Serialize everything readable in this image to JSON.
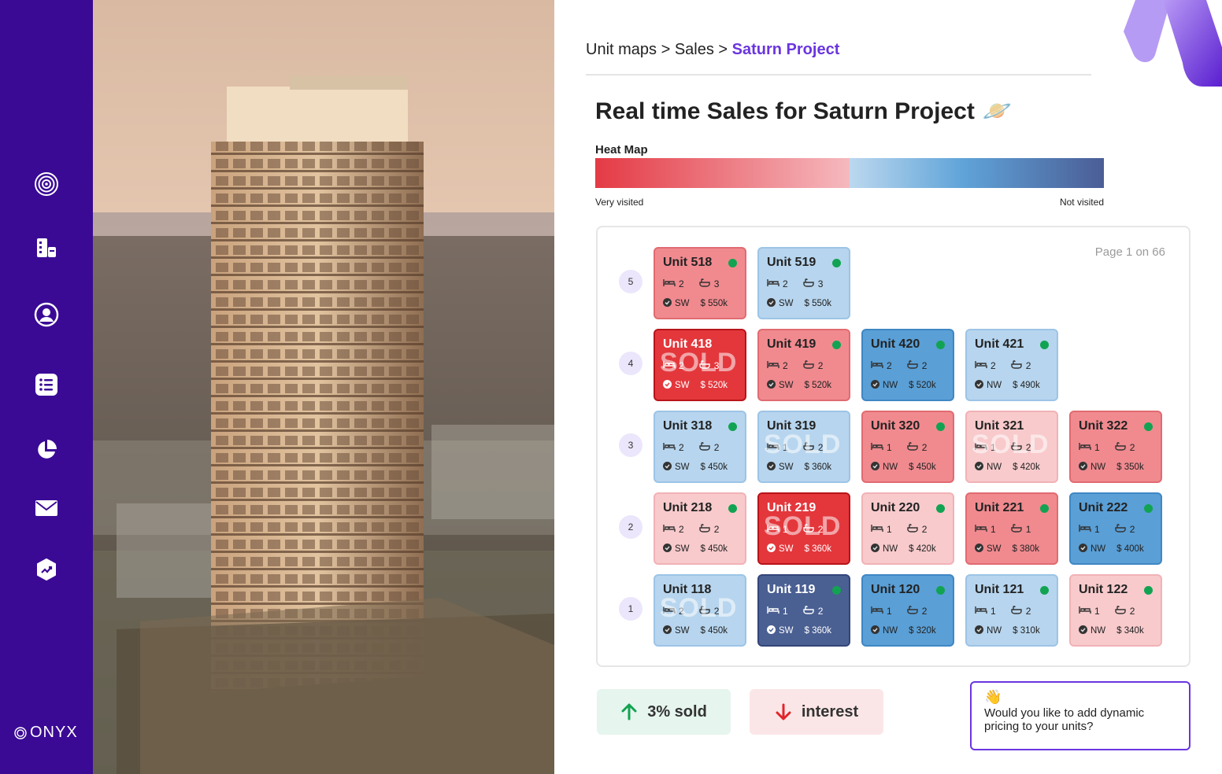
{
  "sidebar": {
    "items": [
      {
        "icon": "target-icon"
      },
      {
        "icon": "building-icon"
      },
      {
        "icon": "user-icon"
      },
      {
        "icon": "list-icon"
      },
      {
        "icon": "pie-chart-icon"
      },
      {
        "icon": "mail-icon"
      },
      {
        "icon": "trend-icon"
      }
    ],
    "logo": "ONYX"
  },
  "breadcrumb": {
    "part1": "Unit maps",
    "sep1": " > ",
    "part2": "Sales",
    "sep2": " > ",
    "current": "Saturn Project"
  },
  "page": {
    "title": "Real time Sales for Saturn Project",
    "title_emoji": "🪐"
  },
  "heatmap": {
    "label": "Heat Map",
    "left_label": "Very visited",
    "right_label": "Not visited"
  },
  "grid": {
    "page_info": "Page 1 on 66",
    "sold_label": "SOLD",
    "floors": [
      "5",
      "4",
      "3",
      "2",
      "1"
    ],
    "units": [
      {
        "name": "Unit 518",
        "beds": "2",
        "baths": "3",
        "dir": "SW",
        "price": "$ 550k",
        "color": "salmon",
        "dot": true,
        "sold": false
      },
      {
        "name": "Unit 519",
        "beds": "2",
        "baths": "3",
        "dir": "SW",
        "price": "$ 550k",
        "color": "lblue",
        "dot": true,
        "sold": false
      },
      {
        "name": "Unit 418",
        "beds": "2",
        "baths": "3",
        "dir": "SW",
        "price": "$ 520k",
        "color": "red",
        "dot": false,
        "sold": true
      },
      {
        "name": "Unit 419",
        "beds": "2",
        "baths": "2",
        "dir": "SW",
        "price": "$ 520k",
        "color": "salmon",
        "dot": true,
        "sold": false
      },
      {
        "name": "Unit 420",
        "beds": "2",
        "baths": "2",
        "dir": "NW",
        "price": "$ 520k",
        "color": "mblue",
        "dot": true,
        "sold": false
      },
      {
        "name": "Unit 421",
        "beds": "2",
        "baths": "2",
        "dir": "NW",
        "price": "$ 490k",
        "color": "lblue",
        "dot": true,
        "sold": false
      },
      {
        "name": "Unit 318",
        "beds": "2",
        "baths": "2",
        "dir": "SW",
        "price": "$ 450k",
        "color": "lblue",
        "dot": true,
        "sold": false
      },
      {
        "name": "Unit 319",
        "beds": "1",
        "baths": "2",
        "dir": "SW",
        "price": "$ 360k",
        "color": "lblue",
        "dot": false,
        "sold": true
      },
      {
        "name": "Unit 320",
        "beds": "1",
        "baths": "2",
        "dir": "NW",
        "price": "$ 450k",
        "color": "salmon",
        "dot": true,
        "sold": false
      },
      {
        "name": "Unit 321",
        "beds": "1",
        "baths": "2",
        "dir": "NW",
        "price": "$ 420k",
        "color": "pink",
        "dot": false,
        "sold": true
      },
      {
        "name": "Unit 322",
        "beds": "1",
        "baths": "2",
        "dir": "NW",
        "price": "$ 350k",
        "color": "salmon",
        "dot": true,
        "sold": false
      },
      {
        "name": "Unit 218",
        "beds": "2",
        "baths": "2",
        "dir": "SW",
        "price": "$ 450k",
        "color": "pink",
        "dot": true,
        "sold": false
      },
      {
        "name": "Unit 219",
        "beds": "1",
        "baths": "2",
        "dir": "SW",
        "price": "$ 360k",
        "color": "red",
        "dot": false,
        "sold": true
      },
      {
        "name": "Unit 220",
        "beds": "1",
        "baths": "2",
        "dir": "NW",
        "price": "$ 420k",
        "color": "pink",
        "dot": true,
        "sold": false
      },
      {
        "name": "Unit 221",
        "beds": "1",
        "baths": "1",
        "dir": "SW",
        "price": "$ 380k",
        "color": "salmon",
        "dot": true,
        "sold": false
      },
      {
        "name": "Unit 222",
        "beds": "1",
        "baths": "2",
        "dir": "NW",
        "price": "$ 400k",
        "color": "mblue",
        "dot": true,
        "sold": false
      },
      {
        "name": "Unit 118",
        "beds": "2",
        "baths": "2",
        "dir": "SW",
        "price": "$ 450k",
        "color": "lblue",
        "dot": false,
        "sold": true
      },
      {
        "name": "Unit 119",
        "beds": "1",
        "baths": "2",
        "dir": "SW",
        "price": "$ 360k",
        "color": "dblue",
        "dot": true,
        "sold": false
      },
      {
        "name": "Unit 120",
        "beds": "1",
        "baths": "2",
        "dir": "NW",
        "price": "$ 320k",
        "color": "mblue",
        "dot": true,
        "sold": false
      },
      {
        "name": "Unit 121",
        "beds": "1",
        "baths": "2",
        "dir": "NW",
        "price": "$ 310k",
        "color": "lblue",
        "dot": true,
        "sold": false
      },
      {
        "name": "Unit 122",
        "beds": "1",
        "baths": "2",
        "dir": "NW",
        "price": "$ 340k",
        "color": "pink",
        "dot": true,
        "sold": false
      }
    ]
  },
  "stats": {
    "sold": "3% sold",
    "interest": "interest"
  },
  "chat": {
    "emoji": "👋",
    "message": "Would you like to add dynamic pricing to your units?"
  },
  "colors": {
    "sidebar": "#3a0a95",
    "accent": "#6a35e0",
    "available_dot": "#12a352"
  }
}
